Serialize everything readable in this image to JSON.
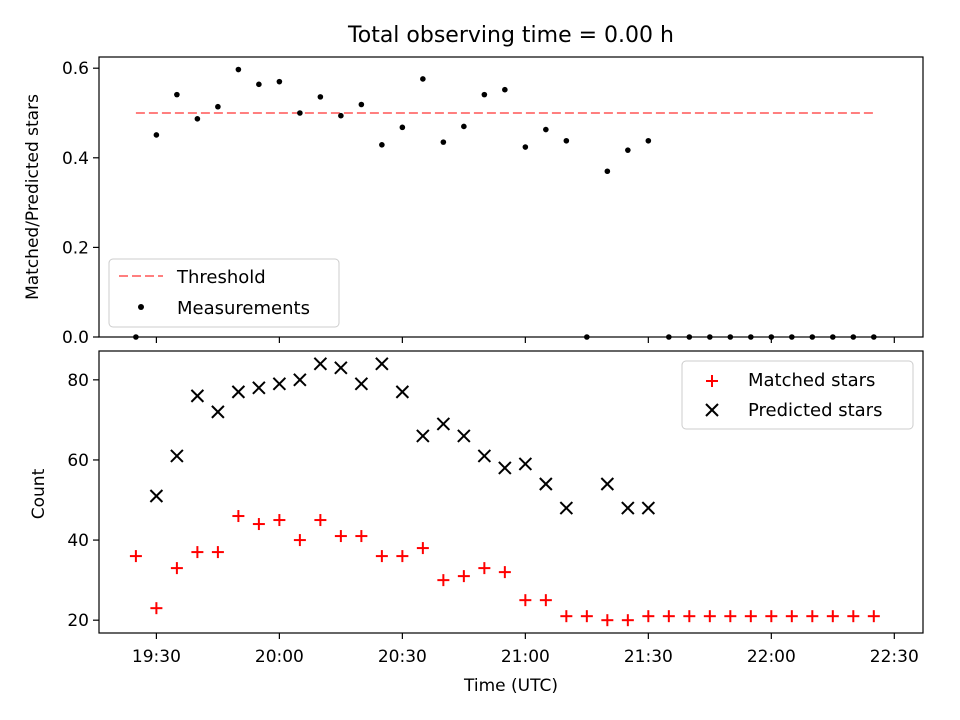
{
  "chart_data": [
    {
      "type": "scatter",
      "title": "Total observing time = 0.00 h",
      "xlabel": "",
      "ylabel": "Matched/Predicted stars",
      "ylim": [
        0,
        0.625
      ],
      "yticks": [
        0.0,
        0.2,
        0.4,
        0.6
      ],
      "ytick_labels": [
        "0.0",
        "0.2",
        "0.4",
        "0.6"
      ],
      "legend_position": "lower-left",
      "threshold": {
        "name": "Threshold",
        "value": 0.5,
        "color": "#ff7f7f",
        "style": "dashed"
      },
      "series": [
        {
          "name": "Measurements",
          "color": "#000000",
          "marker": "dot",
          "x": [
            "19:25",
            "19:30",
            "19:35",
            "19:40",
            "19:45",
            "19:50",
            "19:55",
            "20:00",
            "20:05",
            "20:10",
            "20:15",
            "20:20",
            "20:25",
            "20:30",
            "20:35",
            "20:40",
            "20:45",
            "20:50",
            "20:55",
            "21:00",
            "21:05",
            "21:10",
            "21:15",
            "21:20",
            "21:25",
            "21:30",
            "21:35",
            "21:40",
            "21:45",
            "21:50",
            "21:55",
            "22:00",
            "22:05",
            "22:10",
            "22:15",
            "22:20",
            "22:25"
          ],
          "y": [
            0,
            0.451,
            0.541,
            0.487,
            0.514,
            0.597,
            0.564,
            0.57,
            0.5,
            0.536,
            0.494,
            0.519,
            0.429,
            0.468,
            0.576,
            0.435,
            0.47,
            0.541,
            0.552,
            0.424,
            0.463,
            0.438,
            0,
            0.37,
            0.417,
            0.438,
            0,
            0,
            0,
            0,
            0,
            0,
            0,
            0,
            0,
            0,
            0
          ]
        }
      ]
    },
    {
      "type": "scatter",
      "title": "",
      "xlabel": "Time (UTC)",
      "ylabel": "Count",
      "xlim": [
        "19:16",
        "22:37"
      ],
      "xticks": [
        "19:30",
        "20:00",
        "20:30",
        "21:00",
        "21:30",
        "22:00",
        "22:30"
      ],
      "ylim": [
        16.8,
        87.2
      ],
      "yticks": [
        20,
        40,
        60,
        80
      ],
      "legend_position": "top-right",
      "series": [
        {
          "name": "Matched stars",
          "color": "#ff0000",
          "marker": "plus",
          "x": [
            "19:25",
            "19:30",
            "19:35",
            "19:40",
            "19:45",
            "19:50",
            "19:55",
            "20:00",
            "20:05",
            "20:10",
            "20:15",
            "20:20",
            "20:25",
            "20:30",
            "20:35",
            "20:40",
            "20:45",
            "20:50",
            "20:55",
            "21:00",
            "21:05",
            "21:10",
            "21:15",
            "21:20",
            "21:25",
            "21:30",
            "21:35",
            "21:40",
            "21:45",
            "21:50",
            "21:55",
            "22:00",
            "22:05",
            "22:10",
            "22:15",
            "22:20",
            "22:25"
          ],
          "y": [
            36,
            23,
            33,
            37,
            37,
            46,
            44,
            45,
            40,
            45,
            41,
            41,
            36,
            36,
            38,
            30,
            31,
            33,
            32,
            25,
            25,
            21,
            21,
            20,
            20,
            21,
            21,
            21,
            21,
            21,
            21,
            21,
            21,
            21,
            21,
            21,
            21
          ]
        },
        {
          "name": "Predicted stars",
          "color": "#000000",
          "marker": "x",
          "x": [
            "19:30",
            "19:35",
            "19:40",
            "19:45",
            "19:50",
            "19:55",
            "20:00",
            "20:05",
            "20:10",
            "20:15",
            "20:20",
            "20:25",
            "20:30",
            "20:35",
            "20:40",
            "20:45",
            "20:50",
            "20:55",
            "21:00",
            "21:05",
            "21:10",
            "21:20",
            "21:25",
            "21:30"
          ],
          "y": [
            51,
            61,
            76,
            72,
            77,
            78,
            79,
            80,
            84,
            83,
            79,
            84,
            77,
            66,
            69,
            66,
            61,
            58,
            59,
            54,
            48,
            54,
            48,
            48
          ]
        }
      ]
    }
  ]
}
